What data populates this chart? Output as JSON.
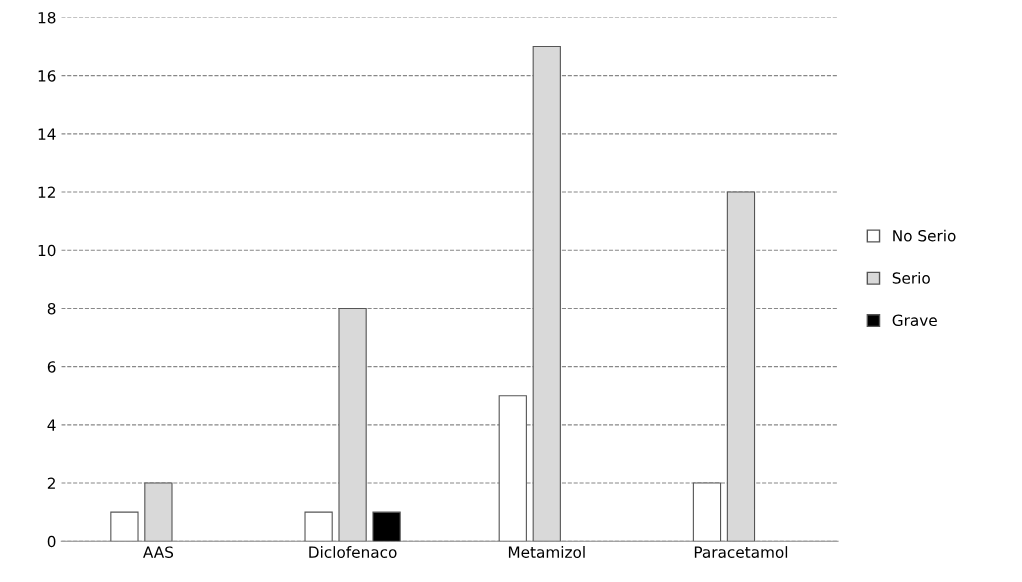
{
  "chart_data": {
    "type": "bar",
    "categories": [
      "AAS",
      "Diclofenaco",
      "Metamizol",
      "Paracetamol"
    ],
    "series": [
      {
        "name": "No Serio",
        "color": "#ffffff",
        "values": [
          1,
          1,
          5,
          2
        ]
      },
      {
        "name": "Serio",
        "color": "#d9d9d9",
        "values": [
          2,
          8,
          17,
          12
        ]
      },
      {
        "name": "Grave",
        "color": "#000000",
        "values": [
          null,
          1,
          null,
          null
        ]
      }
    ],
    "ylim": [
      0,
      18
    ],
    "yticks": [
      0,
      2,
      4,
      6,
      8,
      10,
      12,
      14,
      16,
      18
    ],
    "grid": "y",
    "line_style": "dashed",
    "legend": "right"
  }
}
